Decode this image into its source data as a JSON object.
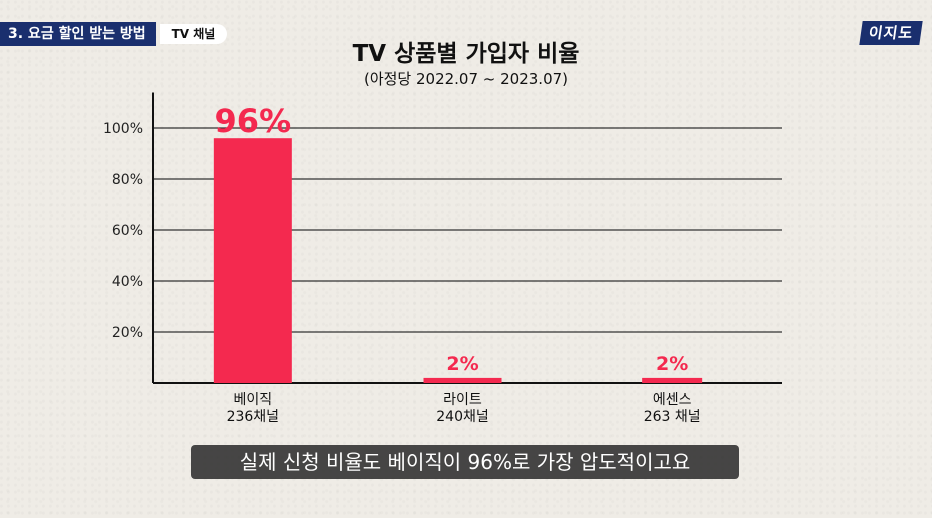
{
  "header": {
    "section_title": "3. 요금 할인 받는 방법",
    "section_sub": "TV 채널",
    "logo_text": "이지도"
  },
  "caption": "실제 신청 비율도 베이직이 96%로 가장 압도적이고요",
  "colors": {
    "bar": "#f4294f",
    "label": "#f4294f",
    "axis": "#111111",
    "grid": "#333333"
  },
  "chart_data": {
    "type": "bar",
    "title": "TV 상품별 가입자 비율",
    "subtitle": "(아정당 2022.07 ~ 2023.07)",
    "categories": [
      {
        "name": "베이직",
        "detail": "236채널"
      },
      {
        "name": "라이트",
        "detail": "240채널"
      },
      {
        "name": "에센스",
        "detail": "263 채널"
      }
    ],
    "values": [
      96,
      2,
      2
    ],
    "value_labels": [
      "96%",
      "2%",
      "2%"
    ],
    "yticks": [
      20,
      40,
      60,
      80,
      100
    ],
    "ytick_labels": [
      "20%",
      "40%",
      "60%",
      "80%",
      "100%"
    ],
    "ylim": [
      0,
      110
    ],
    "grid": true
  }
}
